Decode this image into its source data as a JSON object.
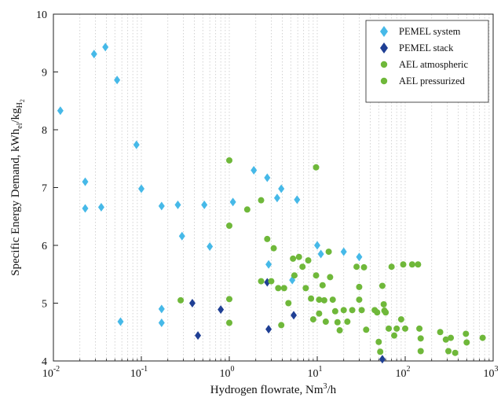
{
  "chart_data": {
    "type": "scatter",
    "xscale": "log",
    "xlim": [
      0.01,
      1000
    ],
    "ylim": [
      4,
      10
    ],
    "x_ticks": [
      {
        "value": 0.01,
        "base": "10",
        "exp": "-2"
      },
      {
        "value": 0.1,
        "base": "10",
        "exp": "-1"
      },
      {
        "value": 1,
        "base": "10",
        "exp": "0"
      },
      {
        "value": 10,
        "base": "10",
        "exp": "1"
      },
      {
        "value": 100,
        "base": "10",
        "exp": "2"
      },
      {
        "value": 1000,
        "base": "10",
        "exp": "3"
      }
    ],
    "y_ticks": [
      4,
      5,
      6,
      7,
      8,
      9,
      10
    ],
    "grid": "vertical dotted minor/major lines on x-axis",
    "xlabel": {
      "main": "Hydrogen flowrate, Nm",
      "sup": "3",
      "tail": "/h"
    },
    "ylabel": {
      "main": "Specific Energy Demand, kWh",
      "sub1": "el",
      "mid": "/kg",
      "sub2": "H",
      "sub3": "2"
    },
    "legend_position": "top-right",
    "legend": [
      "PEMEL system",
      "PEMEL stack",
      "AEL atmospheric",
      "AEL pressurized"
    ],
    "colors": {
      "pemel_system": "#46b9e8",
      "pemel_stack": "#1f3f94",
      "ael_atmospheric": "#6fb83a",
      "ael_pressurized": "#6fb83a",
      "grid": "#c8c8c8"
    },
    "series": [
      {
        "name": "PEMEL system",
        "marker": "diamond",
        "points": [
          [
            0.012,
            8.33
          ],
          [
            0.023,
            7.1
          ],
          [
            0.023,
            6.64
          ],
          [
            0.029,
            9.31
          ],
          [
            0.035,
            6.66
          ],
          [
            0.039,
            9.43
          ],
          [
            0.053,
            8.86
          ],
          [
            0.058,
            4.68
          ],
          [
            0.088,
            7.74
          ],
          [
            0.1,
            6.98
          ],
          [
            0.17,
            6.68
          ],
          [
            0.17,
            4.9
          ],
          [
            0.17,
            4.66
          ],
          [
            0.26,
            6.7
          ],
          [
            0.29,
            6.16
          ],
          [
            0.52,
            6.7
          ],
          [
            0.6,
            5.98
          ],
          [
            1.1,
            6.75
          ],
          [
            1.9,
            7.3
          ],
          [
            2.7,
            7.17
          ],
          [
            2.8,
            5.67
          ],
          [
            3.5,
            6.82
          ],
          [
            3.9,
            6.98
          ],
          [
            5.2,
            5.4
          ],
          [
            5.9,
            6.79
          ],
          [
            10,
            6.0
          ],
          [
            11,
            5.85
          ],
          [
            20,
            5.89
          ],
          [
            30,
            5.8
          ]
        ]
      },
      {
        "name": "PEMEL stack",
        "marker": "diamond",
        "points": [
          [
            0.38,
            5.0
          ],
          [
            0.44,
            4.44
          ],
          [
            0.8,
            4.89
          ],
          [
            2.7,
            5.36
          ],
          [
            2.8,
            4.55
          ],
          [
            5.4,
            4.79
          ],
          [
            55,
            4.03
          ]
        ]
      },
      {
        "name": "AEL atmospheric",
        "marker": "circle",
        "points": [
          [
            0.28,
            5.05
          ],
          [
            1.0,
            7.47
          ],
          [
            1.0,
            6.34
          ],
          [
            1.0,
            5.07
          ],
          [
            1.0,
            4.66
          ],
          [
            1.6,
            6.62
          ],
          [
            2.3,
            6.78
          ],
          [
            2.3,
            5.38
          ],
          [
            2.7,
            6.11
          ],
          [
            3.0,
            5.38
          ],
          [
            3.2,
            5.95
          ],
          [
            3.6,
            5.26
          ],
          [
            3.9,
            4.62
          ],
          [
            4.2,
            5.26
          ],
          [
            4.7,
            5.0
          ],
          [
            5.3,
            5.77
          ],
          [
            5.5,
            5.48
          ],
          [
            6.2,
            5.8
          ],
          [
            6.8,
            5.63
          ],
          [
            7.4,
            5.26
          ],
          [
            7.9,
            5.74
          ],
          [
            8.5,
            5.08
          ],
          [
            9.0,
            4.72
          ],
          [
            9.7,
            7.35
          ],
          [
            9.7,
            5.48
          ],
          [
            10.5,
            5.06
          ],
          [
            10.5,
            4.82
          ],
          [
            11.5,
            5.31
          ],
          [
            12,
            5.05
          ],
          [
            12.5,
            4.68
          ],
          [
            13.5,
            5.89
          ],
          [
            14,
            5.45
          ],
          [
            15,
            5.06
          ],
          [
            16,
            4.86
          ],
          [
            17,
            4.67
          ],
          [
            18,
            4.53
          ],
          [
            20,
            4.88
          ],
          [
            22,
            4.68
          ],
          [
            25,
            4.88
          ],
          [
            28,
            5.63
          ]
        ]
      },
      {
        "name": "AEL pressurized",
        "marker": "circle",
        "points": [
          [
            30,
            5.28
          ],
          [
            30,
            5.06
          ],
          [
            32,
            4.88
          ],
          [
            34,
            5.62
          ],
          [
            36,
            4.54
          ],
          [
            45,
            4.88
          ],
          [
            48,
            4.84
          ],
          [
            50,
            4.33
          ],
          [
            52,
            4.16
          ],
          [
            55,
            5.3
          ],
          [
            57,
            4.98
          ],
          [
            58,
            4.87
          ],
          [
            60,
            4.84
          ],
          [
            65,
            4.56
          ],
          [
            70,
            5.63
          ],
          [
            75,
            4.44
          ],
          [
            80,
            4.56
          ],
          [
            90,
            4.72
          ],
          [
            95,
            5.67
          ],
          [
            100,
            4.56
          ],
          [
            120,
            5.67
          ],
          [
            140,
            5.67
          ],
          [
            145,
            4.56
          ],
          [
            150,
            4.39
          ],
          [
            150,
            4.17
          ],
          [
            250,
            4.5
          ],
          [
            290,
            4.37
          ],
          [
            310,
            4.17
          ],
          [
            330,
            4.4
          ],
          [
            370,
            4.14
          ],
          [
            490,
            4.47
          ],
          [
            500,
            4.32
          ],
          [
            760,
            4.4
          ]
        ]
      }
    ]
  }
}
